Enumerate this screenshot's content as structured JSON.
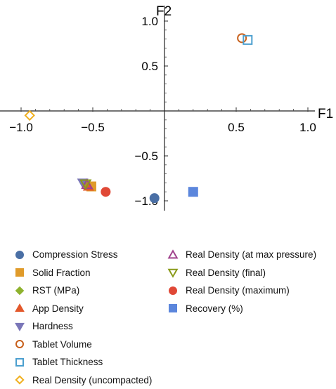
{
  "chart_data": {
    "type": "scatter",
    "xlabel": "F1",
    "ylabel": "F2",
    "xlim": [
      -1.0,
      1.0
    ],
    "ylim": [
      -1.0,
      1.0
    ],
    "x_ticks": [
      -1.0,
      -0.5,
      0.5,
      1.0
    ],
    "y_ticks": [
      1.0,
      0.5,
      -0.5,
      -1.0
    ],
    "x_tick_labels": [
      "−1.0",
      "−0.5",
      "0.5",
      "1.0"
    ],
    "y_tick_labels": [
      "1.0",
      "0.5",
      "−0.5",
      "−1.0"
    ],
    "grid": false,
    "legend_position": "bottom",
    "series": [
      {
        "name": "Compression Stress",
        "marker": "circle",
        "filled": true,
        "color": "#4a6fa5",
        "x": -0.07,
        "y": -0.97
      },
      {
        "name": "Solid Fraction",
        "marker": "square",
        "filled": true,
        "color": "#e09b2a",
        "x": -0.51,
        "y": -0.84
      },
      {
        "name": "RST (MPa)",
        "marker": "diamond",
        "filled": true,
        "color": "#8eb22e",
        "x": -0.55,
        "y": -0.81
      },
      {
        "name": "App Density",
        "marker": "triangle-up",
        "filled": true,
        "color": "#e3582b",
        "x": -0.53,
        "y": -0.84
      },
      {
        "name": "Hardness",
        "marker": "triangle-down",
        "filled": true,
        "color": "#7a76b8",
        "x": -0.57,
        "y": -0.8
      },
      {
        "name": "Tablet Volume",
        "marker": "circle",
        "filled": false,
        "color": "#c8601b",
        "x": 0.54,
        "y": 0.81
      },
      {
        "name": "Tablet Thickness",
        "marker": "square",
        "filled": false,
        "color": "#4b9fcf",
        "x": 0.58,
        "y": 0.79
      },
      {
        "name": "Real Density (uncompacted)",
        "marker": "diamond",
        "filled": false,
        "color": "#f0b020",
        "x": -0.94,
        "y": -0.05
      },
      {
        "name": "Real Density (at max pressure)",
        "marker": "triangle-up",
        "filled": false,
        "color": "#a0428c",
        "x": -0.54,
        "y": -0.82
      },
      {
        "name": "Real Density (final)",
        "marker": "triangle-down",
        "filled": false,
        "color": "#8a9a1a",
        "x": -0.55,
        "y": -0.81
      },
      {
        "name": "Real Density (maximum)",
        "marker": "circle",
        "filled": true,
        "color": "#e04836",
        "x": -0.41,
        "y": -0.9
      },
      {
        "name": "Recovery (%)",
        "marker": "square",
        "filled": true,
        "color": "#5b86dc",
        "x": 0.2,
        "y": -0.9
      }
    ]
  }
}
